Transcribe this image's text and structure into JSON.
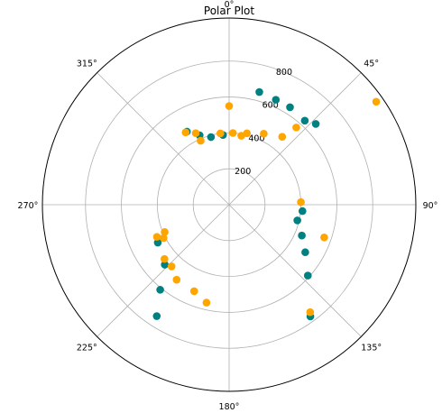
{
  "chart_data": {
    "type": "scatter",
    "projection": "polar",
    "title": "Polar Plot",
    "theta_direction": "clockwise",
    "theta_zero": "top",
    "r_max": 1040,
    "r_ticks": [
      200,
      400,
      600,
      800
    ],
    "r_tick_labels": [
      "200",
      "400",
      "600",
      "800"
    ],
    "r_label_angle_deg": 22.5,
    "theta_ticks_deg": [
      0,
      45,
      90,
      135,
      180,
      225,
      270,
      315
    ],
    "theta_tick_labels": [
      "0°",
      "45°",
      "90°",
      "135°",
      "180°",
      "225°",
      "270°",
      "315°"
    ],
    "grid": true,
    "series": [
      {
        "color": "#008080",
        "points": [
          {
            "theta": 15,
            "r": 650
          },
          {
            "theta": 24,
            "r": 640
          },
          {
            "theta": 32,
            "r": 640
          },
          {
            "theta": 42,
            "r": 630
          },
          {
            "theta": 47,
            "r": 660
          },
          {
            "theta": -30,
            "r": 470
          },
          {
            "theta": -23,
            "r": 420
          },
          {
            "theta": -15,
            "r": 390
          },
          {
            "theta": -5,
            "r": 390
          },
          {
            "theta": 95,
            "r": 410
          },
          {
            "theta": 103,
            "r": 390
          },
          {
            "theta": 113,
            "r": 440
          },
          {
            "theta": 122,
            "r": 500
          },
          {
            "theta": 132,
            "r": 590
          },
          {
            "theta": 144,
            "r": 770
          },
          {
            "theta": 242,
            "r": 450
          },
          {
            "theta": 227,
            "r": 490
          },
          {
            "theta": 219,
            "r": 610
          },
          {
            "theta": 213,
            "r": 740
          }
        ]
      },
      {
        "color": "#FFA500",
        "points": [
          {
            "theta": 0,
            "r": 550
          },
          {
            "theta": -31,
            "r": 470
          },
          {
            "theta": -25,
            "r": 440
          },
          {
            "theta": -24,
            "r": 390
          },
          {
            "theta": -7,
            "r": 400
          },
          {
            "theta": 3,
            "r": 400
          },
          {
            "theta": 10,
            "r": 390
          },
          {
            "theta": 14,
            "r": 410
          },
          {
            "theta": 26,
            "r": 440
          },
          {
            "theta": 38,
            "r": 480
          },
          {
            "theta": 41,
            "r": 570
          },
          {
            "theta": 55,
            "r": 1000
          },
          {
            "theta": 88,
            "r": 400
          },
          {
            "theta": 109,
            "r": 560
          },
          {
            "theta": 143,
            "r": 750
          },
          {
            "theta": 246,
            "r": 440
          },
          {
            "theta": 243,
            "r": 410
          },
          {
            "theta": 247,
            "r": 390
          },
          {
            "theta": 230,
            "r": 470
          },
          {
            "theta": 223,
            "r": 470
          },
          {
            "theta": 215,
            "r": 510
          },
          {
            "theta": 202,
            "r": 520
          },
          {
            "theta": 193,
            "r": 560
          }
        ]
      }
    ]
  }
}
